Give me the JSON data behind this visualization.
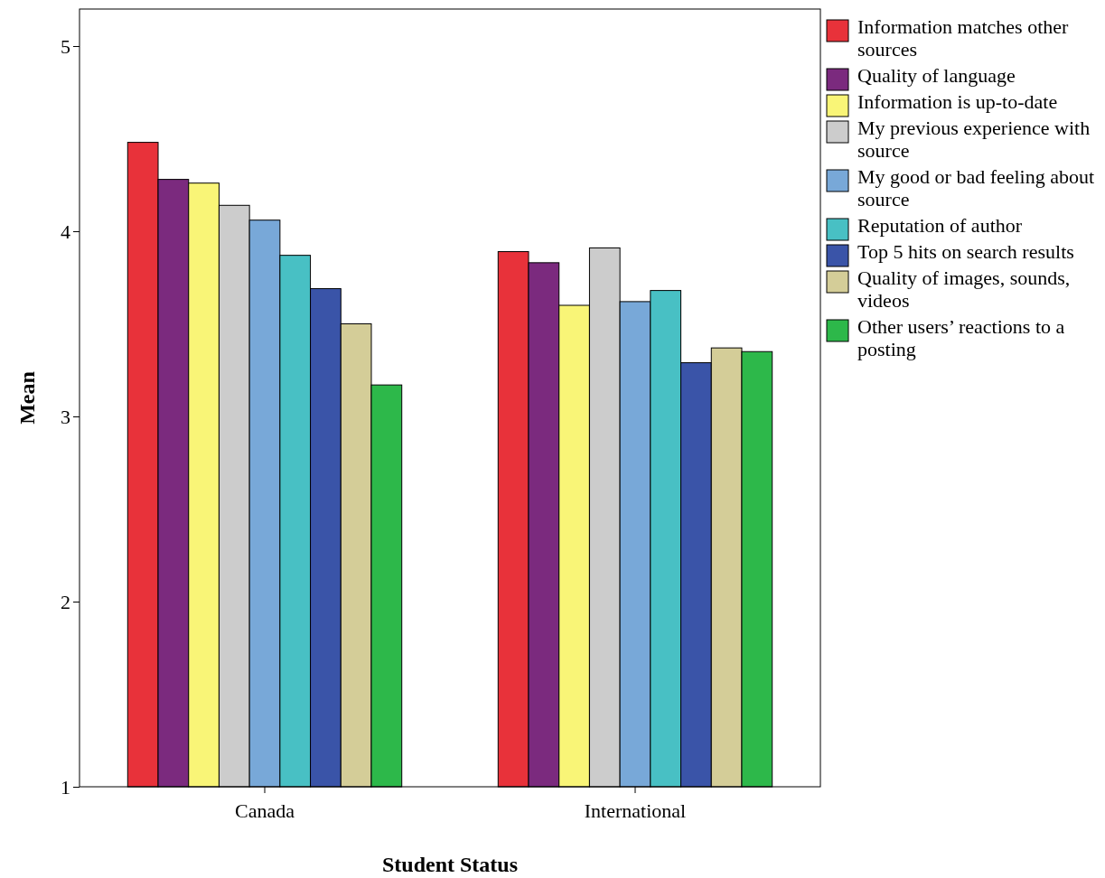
{
  "chart_data": {
    "type": "bar",
    "xlabel": "Student Status",
    "ylabel": "Mean",
    "categories": [
      "Canada",
      "International"
    ],
    "series": [
      {
        "name": "Information matches other sources",
        "color": "#e8323a",
        "values": [
          4.48,
          3.89
        ]
      },
      {
        "name": "Quality of language",
        "color": "#7b2a7e",
        "values": [
          4.28,
          3.83
        ]
      },
      {
        "name": "Information is up-to-date",
        "color": "#f9f577",
        "values": [
          4.26,
          3.6
        ]
      },
      {
        "name": "My previous experience with source",
        "color": "#cccccc",
        "values": [
          4.14,
          3.91
        ]
      },
      {
        "name": "My good or bad feeling about source",
        "color": "#78a8d8",
        "values": [
          4.06,
          3.62
        ]
      },
      {
        "name": "Reputation of author",
        "color": "#48c0c4",
        "values": [
          3.87,
          3.68
        ]
      },
      {
        "name": "Top 5 hits on search results",
        "color": "#3a54a8",
        "values": [
          3.69,
          3.29
        ]
      },
      {
        "name": "Quality of images, sounds, videos",
        "color": "#d4cd98",
        "values": [
          3.5,
          3.37
        ]
      },
      {
        "name": "Other users’ reactions to a posting",
        "color": "#2db84a",
        "values": [
          3.17,
          3.35
        ]
      }
    ],
    "ylim": [
      1,
      5.2
    ],
    "yticks": [
      1,
      2,
      3,
      4,
      5
    ],
    "grid": false,
    "legend": "right"
  }
}
